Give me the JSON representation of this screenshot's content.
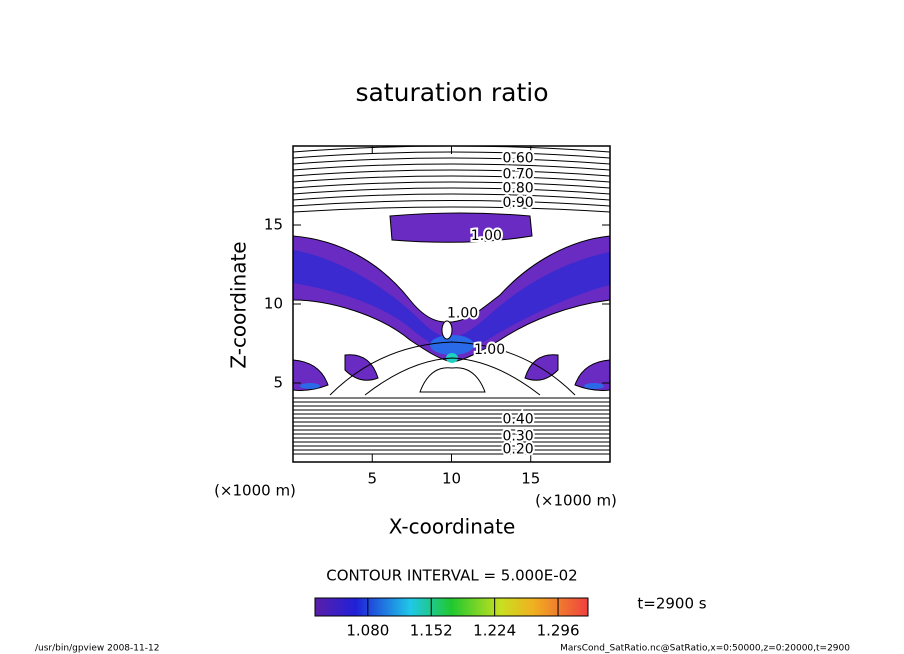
{
  "chart_data": {
    "type": "contour",
    "title": "saturation ratio",
    "x_label": "X-coordinate",
    "y_label": "Z-coordinate",
    "x_unit": "(×1000 m)",
    "y_unit": "(×1000 m)",
    "xlim": [
      0,
      20
    ],
    "ylim": [
      0,
      20
    ],
    "xticks": [
      5,
      10,
      15
    ],
    "yticks": [
      5,
      10,
      15
    ],
    "contour_interval_text": "CONTOUR INTERVAL = 5.000E-02",
    "contour_labels": [
      {
        "value": 0.6,
        "label": "0.60",
        "x": 14.2,
        "y": 19.2
      },
      {
        "value": 0.7,
        "label": "0.70",
        "x": 14.2,
        "y": 18.2
      },
      {
        "value": 0.8,
        "label": "0.80",
        "x": 14.2,
        "y": 17.3
      },
      {
        "value": 0.9,
        "label": "0.90",
        "x": 14.2,
        "y": 16.4
      },
      {
        "value": 1,
        "label": "1.00",
        "x": 12.2,
        "y": 14.3
      },
      {
        "value": 1,
        "label": "1.00",
        "x": 10.7,
        "y": 9.4
      },
      {
        "value": 1,
        "label": "1.00",
        "x": 12.4,
        "y": 7.1
      },
      {
        "value": 0.4,
        "label": "0.40",
        "x": 14.2,
        "y": 2.7
      },
      {
        "value": 0.3,
        "label": "0.30",
        "x": 14.2,
        "y": 1.6
      },
      {
        "value": 0.2,
        "label": "0.20",
        "x": 14.2,
        "y": 0.8
      }
    ],
    "colorbar": {
      "lim": [
        1.02,
        1.33
      ],
      "ticks": [
        {
          "value": 1.08,
          "label": "1.080"
        },
        {
          "value": 1.152,
          "label": "1.152"
        },
        {
          "value": 1.224,
          "label": "1.224"
        },
        {
          "value": 1.296,
          "label": "1.296"
        }
      ]
    },
    "time_label": "t=2900 s"
  },
  "footer": {
    "left": "/usr/bin/gpview  2008-11-12",
    "right": "MarsCond_SatRatio.nc@SatRatio,x=0:50000,z=0:20000,t=2900"
  }
}
